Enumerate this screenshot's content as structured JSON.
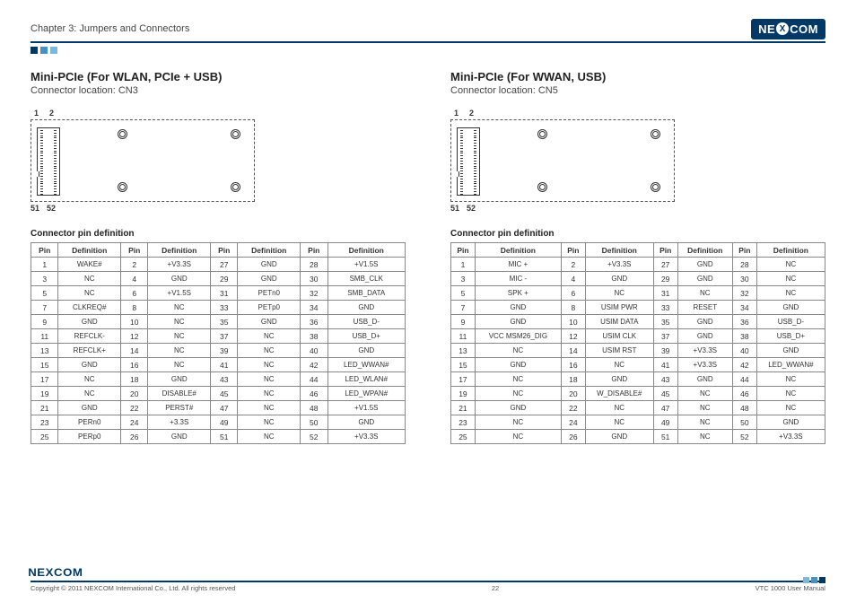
{
  "header": {
    "chapter": "Chapter 3: Jumpers and Connectors",
    "brand_pre": "NE",
    "brand_x": "X",
    "brand_post": "COM"
  },
  "left": {
    "title": "Mini-PCIe (For WLAN, PCIe + USB)",
    "subtitle": "Connector location: CN3",
    "top_pins": [
      "1",
      "2"
    ],
    "bot_pins": [
      "51",
      "52"
    ],
    "table_title": "Connector pin definition",
    "headers": [
      "Pin",
      "Definition",
      "Pin",
      "Definition",
      "Pin",
      "Definition",
      "Pin",
      "Definition"
    ],
    "rows": [
      [
        "1",
        "WAKE#",
        "2",
        "+V3.3S",
        "27",
        "GND",
        "28",
        "+V1.5S"
      ],
      [
        "3",
        "NC",
        "4",
        "GND",
        "29",
        "GND",
        "30",
        "SMB_CLK"
      ],
      [
        "5",
        "NC",
        "6",
        "+V1.5S",
        "31",
        "PETn0",
        "32",
        "SMB_DATA"
      ],
      [
        "7",
        "CLKREQ#",
        "8",
        "NC",
        "33",
        "PETp0",
        "34",
        "GND"
      ],
      [
        "9",
        "GND",
        "10",
        "NC",
        "35",
        "GND",
        "36",
        "USB_D-"
      ],
      [
        "11",
        "REFCLK-",
        "12",
        "NC",
        "37",
        "NC",
        "38",
        "USB_D+"
      ],
      [
        "13",
        "REFCLK+",
        "14",
        "NC",
        "39",
        "NC",
        "40",
        "GND"
      ],
      [
        "15",
        "GND",
        "16",
        "NC",
        "41",
        "NC",
        "42",
        "LED_WWAN#"
      ],
      [
        "17",
        "NC",
        "18",
        "GND",
        "43",
        "NC",
        "44",
        "LED_WLAN#"
      ],
      [
        "19",
        "NC",
        "20",
        "DISABLE#",
        "45",
        "NC",
        "46",
        "LED_WPAN#"
      ],
      [
        "21",
        "GND",
        "22",
        "PERST#",
        "47",
        "NC",
        "48",
        "+V1.5S"
      ],
      [
        "23",
        "PERn0",
        "24",
        "+3.3S",
        "49",
        "NC",
        "50",
        "GND"
      ],
      [
        "25",
        "PERp0",
        "26",
        "GND",
        "51",
        "NC",
        "52",
        "+V3.3S"
      ]
    ]
  },
  "right": {
    "title": "Mini-PCIe (For WWAN, USB)",
    "subtitle": "Connector location: CN5",
    "top_pins": [
      "1",
      "2"
    ],
    "bot_pins": [
      "51",
      "52"
    ],
    "table_title": "Connector pin definition",
    "headers": [
      "Pin",
      "Definition",
      "Pin",
      "Definition",
      "Pin",
      "Definition",
      "Pin",
      "Definition"
    ],
    "rows": [
      [
        "1",
        "MIC +",
        "2",
        "+V3.3S",
        "27",
        "GND",
        "28",
        "NC"
      ],
      [
        "3",
        "MIC -",
        "4",
        "GND",
        "29",
        "GND",
        "30",
        "NC"
      ],
      [
        "5",
        "SPK +",
        "6",
        "NC",
        "31",
        "NC",
        "32",
        "NC"
      ],
      [
        "7",
        "GND",
        "8",
        "USIM PWR",
        "33",
        "RESET",
        "34",
        "GND"
      ],
      [
        "9",
        "GND",
        "10",
        "USIM DATA",
        "35",
        "GND",
        "36",
        "USB_D-"
      ],
      [
        "11",
        "VCC MSM26_DIG",
        "12",
        "USIM CLK",
        "37",
        "GND",
        "38",
        "USB_D+"
      ],
      [
        "13",
        "NC",
        "14",
        "USIM RST",
        "39",
        "+V3.3S",
        "40",
        "GND"
      ],
      [
        "15",
        "GND",
        "16",
        "NC",
        "41",
        "+V3.3S",
        "42",
        "LED_WWAN#"
      ],
      [
        "17",
        "NC",
        "18",
        "GND",
        "43",
        "GND",
        "44",
        "NC"
      ],
      [
        "19",
        "NC",
        "20",
        "W_DISABLE#",
        "45",
        "NC",
        "46",
        "NC"
      ],
      [
        "21",
        "GND",
        "22",
        "NC",
        "47",
        "NC",
        "48",
        "NC"
      ],
      [
        "23",
        "NC",
        "24",
        "NC",
        "49",
        "NC",
        "50",
        "GND"
      ],
      [
        "25",
        "NC",
        "26",
        "GND",
        "51",
        "NC",
        "52",
        "+V3.3S"
      ]
    ]
  },
  "footer": {
    "copyright": "Copyright © 2011 NEXCOM International Co., Ltd. All rights reserved",
    "page": "22",
    "doc": "VTC 1000 User Manual",
    "brand": "NEXCOM"
  },
  "colors": {
    "brand": "#013865",
    "sq2": "#4a90c0",
    "sq3": "#7db8d8"
  }
}
